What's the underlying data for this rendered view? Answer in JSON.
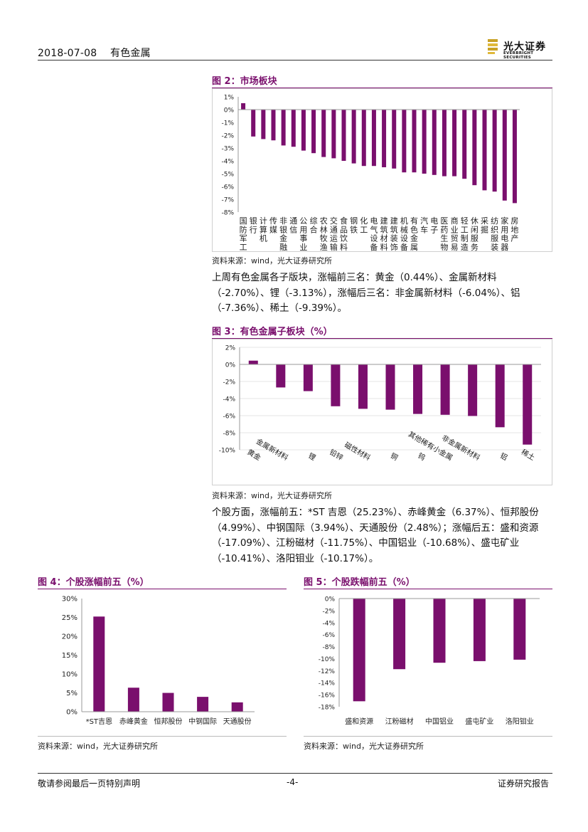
{
  "header": {
    "date": "2018-07-08",
    "sector": "有色金属",
    "logo_cn": "光大证券",
    "logo_en": "EVERBRIGHT SECURITIES"
  },
  "fig2": {
    "title": "图 2：市场板块",
    "source": "资料来源：wind，光大证券研究所",
    "chart_data": {
      "type": "bar",
      "categories": [
        "国防军工",
        "银行",
        "计算机",
        "传媒",
        "非银金融",
        "通信",
        "公用事业",
        "综合",
        "农林牧渔",
        "交通运输",
        "食品饮料",
        "钢铁",
        "化工",
        "电气设备",
        "建筑材料",
        "建筑装饰",
        "机械设备",
        "有色金属",
        "汽车",
        "电子",
        "医药生物",
        "商业贸易",
        "轻工制造",
        "休闲服务",
        "采掘",
        "纺织服装",
        "家用电器",
        "房地产"
      ],
      "values": [
        0.5,
        -2.1,
        -2.3,
        -2.4,
        -2.8,
        -2.9,
        -3.2,
        -3.4,
        -3.7,
        -3.8,
        -4.0,
        -4.2,
        -4.4,
        -4.4,
        -4.5,
        -4.6,
        -4.9,
        -4.9,
        -5.0,
        -5.1,
        -5.2,
        -5.2,
        -5.4,
        -5.9,
        -6.3,
        -6.4,
        -7.1,
        -7.3
      ],
      "yticks": [
        "1%",
        "0%",
        "-1%",
        "-2%",
        "-3%",
        "-4%",
        "-5%",
        "-6%",
        "-7%",
        "-8%"
      ],
      "ylim": [
        -8,
        1
      ],
      "color": "#7a0f6d"
    }
  },
  "para1": "上周有色金属各子版块，涨幅前三名：黄金（0.44%）、金属新材料（-2.70%）、锂（-3.13%），涨幅后三名：非金属新材料（-6.04%）、铝（-7.36%）、稀土（-9.39%）。",
  "fig3": {
    "title": "图 3：有色金属子板块（%）",
    "source": "资料来源：wind，光大证券研究所",
    "chart_data": {
      "type": "bar",
      "categories": [
        "黄金",
        "金属新材料",
        "锂",
        "铅锌",
        "磁性材料",
        "铜",
        "钨",
        "其他稀有小金属",
        "非金属新材料",
        "铝",
        "稀土"
      ],
      "values": [
        0.44,
        -2.7,
        -3.13,
        -4.9,
        -5.2,
        -5.3,
        -5.8,
        -5.9,
        -6.04,
        -7.36,
        -9.39
      ],
      "yticks": [
        "2%",
        "0%",
        "-2%",
        "-4%",
        "-6%",
        "-8%",
        "-10%"
      ],
      "ylim": [
        -10,
        2
      ],
      "color": "#7a0f6d"
    }
  },
  "para2": "个股方面，涨幅前五：*ST 吉恩（25.23%）、赤峰黄金（6.37%）、恒邦股份（4.99%）、中钢国际（3.94%）、天通股份（2.48%）；涨幅后五：盛和资源（-17.09%）、江粉磁材（-11.75%）、中国铝业（-10.68%）、盛屯矿业（-10.41%）、洛阳钼业（-10.17%）。",
  "fig4": {
    "title": "图 4：个股涨幅前五（%）",
    "source": "资料来源：wind，光大证券研究所",
    "chart_data": {
      "type": "bar",
      "categories": [
        "*ST吉恩",
        "赤峰黄金",
        "恒邦股份",
        "中钢国际",
        "天通股份"
      ],
      "values": [
        25.23,
        6.37,
        4.99,
        3.94,
        2.48
      ],
      "yticks": [
        "30%",
        "25%",
        "20%",
        "15%",
        "10%",
        "5%",
        "0%"
      ],
      "ylim": [
        0,
        30
      ],
      "color": "#7a0f6d"
    }
  },
  "fig5": {
    "title": "图 5：个股跌幅前五（%）",
    "source": "资料来源：wind，光大证券研究所",
    "chart_data": {
      "type": "bar",
      "categories": [
        "盛和资源",
        "江粉磁材",
        "中国铝业",
        "盛屯矿业",
        "洛阳钼业"
      ],
      "values": [
        -17.09,
        -11.75,
        -10.68,
        -10.41,
        -10.17
      ],
      "yticks": [
        "0%",
        "-2%",
        "-4%",
        "-6%",
        "-8%",
        "-10%",
        "-12%",
        "-14%",
        "-16%",
        "-18%"
      ],
      "ylim": [
        -18,
        0
      ],
      "color": "#7a0f6d"
    }
  },
  "footer": {
    "left": "敬请参阅最后一页特别声明",
    "page": "-4-",
    "right": "证券研究报告"
  }
}
